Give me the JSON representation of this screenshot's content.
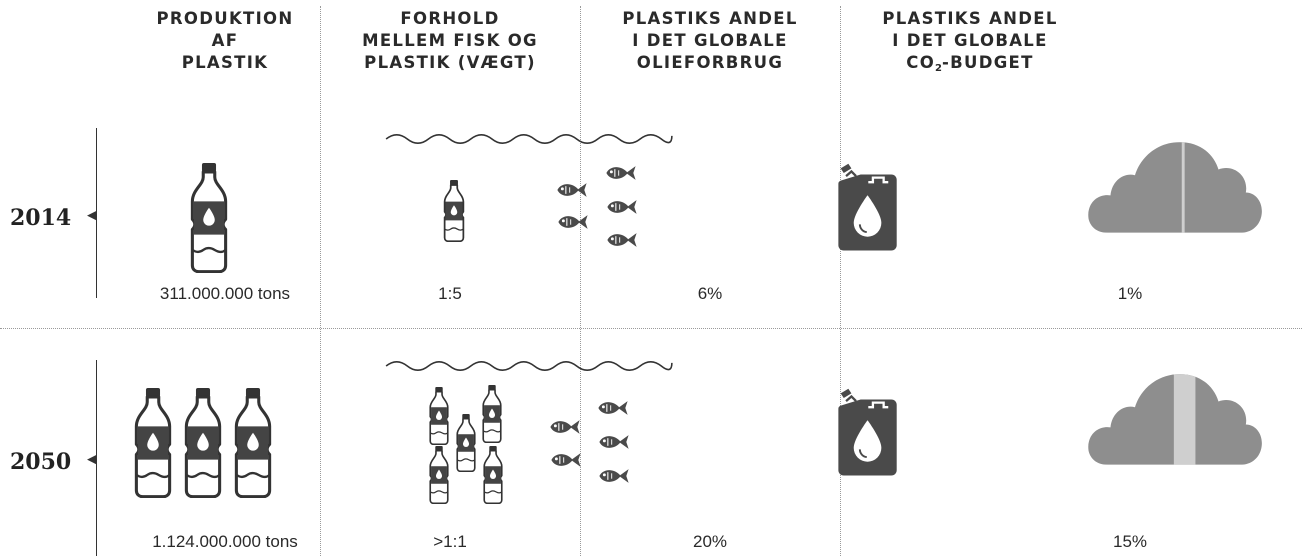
{
  "columns": [
    {
      "title_lines": [
        "PRODUKTION",
        "AF",
        "PLASTIK"
      ]
    },
    {
      "title_lines": [
        "FORHOLD",
        "MELLEM FISK OG",
        "PLASTIK (VÆGT)"
      ]
    },
    {
      "title_lines": [
        "PLASTIKS ANDEL",
        "I DET GLOBALE",
        "OLIEFORBRUG"
      ]
    },
    {
      "title_lines": [
        "PLASTIKS ANDEL",
        "I DET GLOBALE"
      ],
      "title_last_pre": "CO",
      "title_last_sub": "2",
      "title_last_post": "-BUDGET"
    }
  ],
  "rows": [
    {
      "year": "2014",
      "production": "311.000.000 tons",
      "ratio": "1:5",
      "oil_share": "6%",
      "co2_share": "1%",
      "icon_counts": {
        "bottles_production": 1,
        "bottles_sea": 1,
        "fish": 5
      },
      "oil_fill_pct": 6,
      "co2_fill_pct": 1
    },
    {
      "year": "2050",
      "production": "1.124.000.000 tons",
      "ratio": ">1:1",
      "oil_share": "20%",
      "co2_share": "15%",
      "icon_counts": {
        "bottles_production": 3,
        "bottles_sea": 6,
        "fish": 5
      },
      "oil_fill_pct": 20,
      "co2_fill_pct": 15
    }
  ],
  "icons": [
    "plastic-bottle-icon",
    "fish-icon",
    "wave-icon",
    "oil-jerrycan-icon",
    "cloud-icon"
  ],
  "colors": {
    "ink": "#2a2a2a",
    "dark_gray": "#4a4a4a",
    "cloud_gray": "#8e8e8e",
    "cloud_highlight": "#cfcfcf"
  }
}
